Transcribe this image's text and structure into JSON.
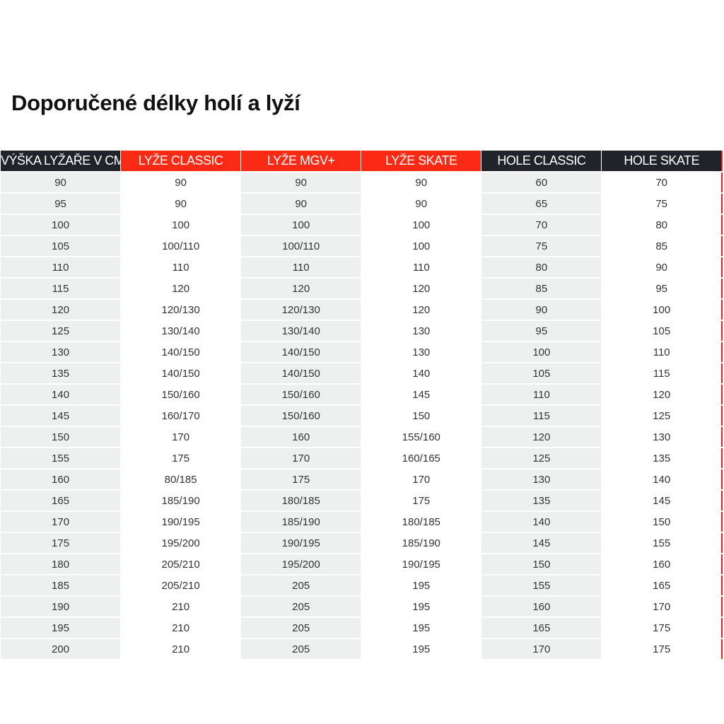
{
  "title": "Doporučené délky holí a lyží",
  "colors": {
    "red_header": "#fa2a14",
    "dark_header": "#22232a",
    "shaded_cell": "#eef0f0"
  },
  "table": {
    "headers": [
      {
        "label": "VÝŠKA LYŽAŘE V CM",
        "style": "dark"
      },
      {
        "label": "LYŽE CLASSIC",
        "style": "red"
      },
      {
        "label": "LYŽE MGV+",
        "style": "red"
      },
      {
        "label": "LYŽE SKATE",
        "style": "red"
      },
      {
        "label": "HOLE CLASSIC",
        "style": "dark"
      },
      {
        "label": "HOLE SKATE",
        "style": "dark"
      }
    ],
    "rows": [
      [
        "90",
        "90",
        "90",
        "90",
        "60",
        "70"
      ],
      [
        "95",
        "90",
        "90",
        "90",
        "65",
        "75"
      ],
      [
        "100",
        "100",
        "100",
        "100",
        "70",
        "80"
      ],
      [
        "105",
        "100/110",
        "100/110",
        "100",
        "75",
        "85"
      ],
      [
        "110",
        "110",
        "110",
        "110",
        "80",
        "90"
      ],
      [
        "115",
        "120",
        "120",
        "120",
        "85",
        "95"
      ],
      [
        "120",
        "120/130",
        "120/130",
        "120",
        "90",
        "100"
      ],
      [
        "125",
        "130/140",
        "130/140",
        "130",
        "95",
        "105"
      ],
      [
        "130",
        "140/150",
        "140/150",
        "130",
        "100",
        "110"
      ],
      [
        "135",
        "140/150",
        "140/150",
        "140",
        "105",
        "115"
      ],
      [
        "140",
        "150/160",
        "150/160",
        "145",
        "110",
        "120"
      ],
      [
        "145",
        "160/170",
        "150/160",
        "150",
        "115",
        "125"
      ],
      [
        "150",
        "170",
        "160",
        "155/160",
        "120",
        "130"
      ],
      [
        "155",
        "175",
        "170",
        "160/165",
        "125",
        "135"
      ],
      [
        "160",
        "80/185",
        "175",
        "170",
        "130",
        "140"
      ],
      [
        "165",
        "185/190",
        "180/185",
        "175",
        "135",
        "145"
      ],
      [
        "170",
        "190/195",
        "185/190",
        "180/185",
        "140",
        "150"
      ],
      [
        "175",
        "195/200",
        "190/195",
        "185/190",
        "145",
        "155"
      ],
      [
        "180",
        "205/210",
        "195/200",
        "190/195",
        "150",
        "160"
      ],
      [
        "185",
        "205/210",
        "205",
        "195",
        "155",
        "165"
      ],
      [
        "190",
        "210",
        "205",
        "195",
        "160",
        "170"
      ],
      [
        "195",
        "210",
        "205",
        "195",
        "165",
        "175"
      ],
      [
        "200",
        "210",
        "205",
        "195",
        "170",
        "175"
      ]
    ]
  }
}
